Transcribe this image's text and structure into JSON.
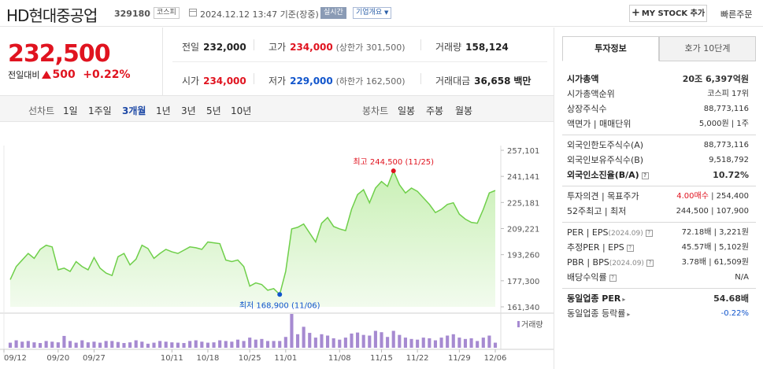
{
  "header": {
    "name": "HD현대중공업",
    "code": "329180",
    "market": "코스피",
    "datetime": "2024.12.12 13:47 기준(장중)",
    "realtime_label": "실시간",
    "company_label": "기업개요",
    "mystock_label": "MY STOCK 추가",
    "quick_order_label": "빠른주문"
  },
  "price": {
    "current": "232,500",
    "change_label": "전일대비",
    "change_value": "500",
    "change_pct": "+0.22%"
  },
  "summary": {
    "prev_label": "전일",
    "prev_value": "232,000",
    "high_label": "고가",
    "high_value": "234,000",
    "upper_limit": "(상한가 301,500)",
    "volume_label": "거래량",
    "volume_value": "158,124",
    "open_label": "시가",
    "open_value": "234,000",
    "low_label": "저가",
    "low_value": "229,000",
    "lower_limit": "(하한가 162,500)",
    "amount_label": "거래대금",
    "amount_value": "36,658",
    "amount_unit": "백만"
  },
  "period_bar": {
    "line_label": "선차트",
    "periods": [
      "1일",
      "1주일",
      "3개월",
      "1년",
      "3년",
      "5년",
      "10년"
    ],
    "active_period": "3개월",
    "candle_label": "봉차트",
    "candles": [
      "일봉",
      "주봉",
      "월봉"
    ]
  },
  "chart_data": {
    "type": "area",
    "y_ticks": [
      "257,101",
      "241,141",
      "225,181",
      "209,221",
      "193,260",
      "177,300",
      "161,340"
    ],
    "ylim": [
      161340,
      257101
    ],
    "x_labels": [
      "09/12",
      "09/20",
      "09/27",
      "10/11",
      "10/18",
      "10/25",
      "11/01",
      "11/08",
      "11/15",
      "11/22",
      "11/29",
      "12/06"
    ],
    "high_annotation": "최고 244,500 (11/25)",
    "low_annotation": "최저 168,900 (11/06)",
    "volume_label": "거래량",
    "colors": {
      "line": "#6fcf4a",
      "fill_top": "#c9f0b5",
      "fill_bottom": "#f2fbee",
      "volume": "#a68ad1",
      "high_dot": "#e0131f",
      "low_dot": "#1155cc"
    },
    "prices": [
      178000,
      186000,
      190000,
      194000,
      191000,
      196500,
      199000,
      198000,
      184000,
      185000,
      183000,
      189000,
      186000,
      184000,
      191500,
      185000,
      182000,
      180500,
      192000,
      194000,
      187000,
      190500,
      199000,
      197000,
      191000,
      194000,
      196500,
      195000,
      194000,
      196000,
      198000,
      197500,
      196500,
      201000,
      200500,
      200000,
      190000,
      189000,
      190000,
      186000,
      174000,
      176000,
      175000,
      171500,
      172500,
      168900,
      183000,
      209000,
      210000,
      212000,
      206500,
      201000,
      212500,
      216000,
      210500,
      209000,
      208000,
      221000,
      230000,
      233000,
      225000,
      234000,
      238000,
      235000,
      244500,
      236000,
      231000,
      234000,
      232000,
      228000,
      224000,
      219000,
      221000,
      224000,
      225000,
      218000,
      215000,
      213000,
      212500,
      221000,
      231000,
      232500
    ],
    "volumes": [
      0.15,
      0.22,
      0.18,
      0.2,
      0.16,
      0.14,
      0.2,
      0.18,
      0.16,
      0.35,
      0.2,
      0.15,
      0.22,
      0.16,
      0.18,
      0.15,
      0.2,
      0.2,
      0.17,
      0.14,
      0.16,
      0.22,
      0.18,
      0.12,
      0.15,
      0.2,
      0.18,
      0.16,
      0.15,
      0.14,
      0.2,
      0.22,
      0.18,
      0.15,
      0.16,
      0.22,
      0.2,
      0.18,
      0.24,
      0.2,
      0.3,
      0.24,
      0.26,
      0.2,
      0.2,
      0.2,
      0.32,
      1.0,
      0.4,
      0.62,
      0.44,
      0.3,
      0.4,
      0.36,
      0.28,
      0.24,
      0.3,
      0.42,
      0.45,
      0.38,
      0.36,
      0.5,
      0.46,
      0.32,
      0.5,
      0.38,
      0.3,
      0.26,
      0.24,
      0.3,
      0.28,
      0.22,
      0.3,
      0.36,
      0.4,
      0.3,
      0.26,
      0.28,
      0.2,
      0.3,
      0.36,
      0.15
    ]
  },
  "right_panel": {
    "tab_invest": "투자정보",
    "tab_orderbook": "호가 10단계",
    "market_cap_label": "시가총액",
    "market_cap_value": "20조 6,397억원",
    "market_cap_rank_label": "시가총액순위",
    "market_cap_rank_value": "코스피 17위",
    "shares_label": "상장주식수",
    "shares_value": "88,773,116",
    "par_label": "액면가 | 매매단위",
    "par_value": "5,000원 | 1주",
    "foreign_limit_label": "외국인한도주식수(A)",
    "foreign_limit_value": "88,773,116",
    "foreign_hold_label": "외국인보유주식수(B)",
    "foreign_hold_value": "9,518,792",
    "foreign_ratio_label": "외국인소진율(B/A)",
    "foreign_ratio_value": "10.72%",
    "opinion_label": "투자의견 | 목표주가",
    "opinion_value": "4.00매수",
    "target_value": "254,400",
    "week52_label": "52주최고 | 최저",
    "week52_value": "244,500 | 107,900",
    "per_label": "PER | EPS",
    "per_date": "(2024.09)",
    "per_value": "72.18배 | 3,221원",
    "est_per_label": "추정PER | EPS",
    "est_per_value": "45.57배 | 5,102원",
    "pbr_label": "PBR | BPS",
    "pbr_date": "(2024.09)",
    "pbr_value": "3.78배 | 61,509원",
    "div_label": "배당수익률",
    "div_value": "N/A",
    "industry_per_label": "동일업종 PER",
    "industry_per_value": "54.68배",
    "industry_rate_label": "동일업종 등락률",
    "industry_rate_value": "-0.22%"
  }
}
